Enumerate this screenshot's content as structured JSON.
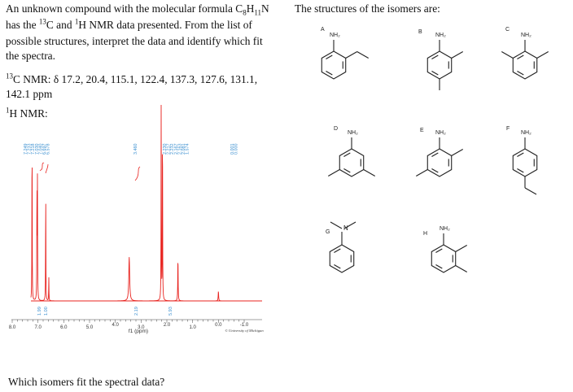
{
  "question": {
    "line1_pre": "An unknown compound with the molecular formula C",
    "sub_c": "8",
    "mid_h": "H",
    "sub_h": "11",
    "line1_end": "N",
    "line2_a": "has the ",
    "sup_13": "13",
    "line2_b": "C and ",
    "sup_1": "1",
    "line2_c": "H NMR data presented. From the list of",
    "line3": "possible structures, interpret the data and identify which fit",
    "line4": "the spectra.",
    "c13_sup": "13",
    "c13_line1": "C NMR: δ 17.2, 20.4, 115.1, 122.4, 137.3, 127.6, 131.1,",
    "c13_line2": "142.1 ppm",
    "h1_sup": "1",
    "h1_label": "H NMR:",
    "prompt": "Which isomers fit the spectral data?"
  },
  "isomers": {
    "header": "The structures of the isomers are:",
    "nh2": "NH₂",
    "n_atom": "N",
    "labels": [
      "A",
      "B",
      "C",
      "D",
      "E",
      "F",
      "G",
      "H"
    ]
  },
  "spectrum": {
    "trace_color": "#e8231f",
    "annotation_color": "#3a8fd0",
    "axis_ticks": [
      "8.0",
      "7.0",
      "6.0",
      "5.0",
      "4.0",
      "3.0",
      "2.0",
      "1.0",
      "0.0",
      "-1.0"
    ],
    "axis_label": "f1 (ppm)",
    "credit": "© University of Michigan",
    "peak_labels_a": [
      "7.249",
      "7.233",
      "7.218",
      "7.030",
      "7.040",
      "6.697",
      "6.578"
    ],
    "peak_label_b": "3.460",
    "peak_labels_c": [
      "2.230",
      "2.217",
      "2.232",
      "2.167",
      "2.163",
      "2.081",
      "1.574"
    ],
    "peak_labels_d": [
      "0.001",
      "0.000"
    ],
    "integrals": [
      "1.99",
      "1.00",
      "2.19",
      "5.93"
    ],
    "peak_heights": {
      "aromatic_a": 0.92,
      "aromatic_b": 0.62,
      "aromatic_c": 0.6,
      "aromatic_d": 0.58,
      "nh2": 0.22,
      "methyl_a": 1.0,
      "methyl_b": 0.99,
      "water": 0.23,
      "tms": 0.05
    }
  }
}
